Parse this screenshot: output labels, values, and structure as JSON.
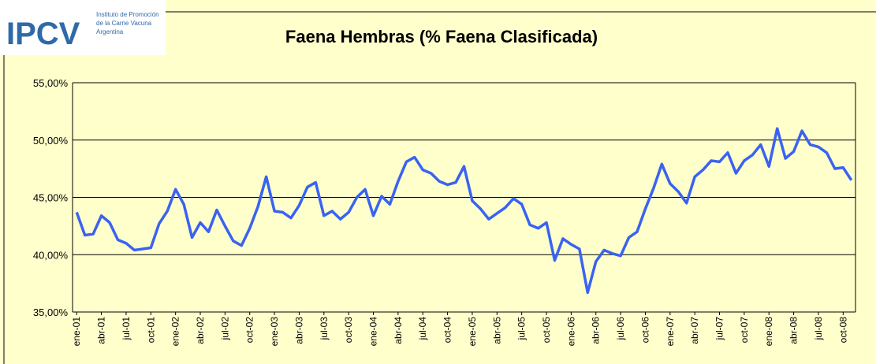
{
  "logo": {
    "mark": "IPCV",
    "line1": "Instituto de Promoción",
    "line2": "de la Carne Vacuna",
    "line3": "Argentina"
  },
  "chart_data": {
    "type": "line",
    "title": "Faena Hembras (% Faena Clasificada)",
    "categories": [
      "ene-01",
      null,
      null,
      "abr-01",
      null,
      null,
      "jul-01",
      null,
      null,
      "oct-01",
      null,
      null,
      "ene-02",
      null,
      null,
      "abr-02",
      null,
      null,
      "jul-02",
      null,
      null,
      "oct-02",
      null,
      null,
      "ene-03",
      null,
      null,
      "abr-03",
      null,
      null,
      "jul-03",
      null,
      null,
      "oct-03",
      null,
      null,
      "ene-04",
      null,
      null,
      "abr-04",
      null,
      null,
      "jul-04",
      null,
      null,
      "oct-04",
      null,
      null,
      "ene-05",
      null,
      null,
      "abr-05",
      null,
      null,
      "jul-05",
      null,
      null,
      "oct-05",
      null,
      null,
      "ene-06",
      null,
      null,
      "abr-06",
      null,
      null,
      "jul-06",
      null,
      null,
      "oct-06",
      null,
      null,
      "ene-07",
      null,
      null,
      "abr-07",
      null,
      null,
      "jul-07",
      null,
      null,
      "oct-07",
      null,
      null,
      "ene-08",
      null,
      null,
      "abr-08",
      null,
      null,
      "jul-08",
      null,
      null,
      "oct-08",
      null
    ],
    "series": [
      {
        "color": "#3a62f2",
        "values": [
          43.7,
          41.7,
          41.8,
          43.4,
          42.8,
          41.3,
          41.0,
          40.4,
          40.5,
          40.6,
          42.7,
          43.8,
          45.7,
          44.4,
          41.5,
          42.8,
          42.0,
          43.9,
          42.5,
          41.2,
          40.8,
          42.3,
          44.2,
          46.8,
          43.8,
          43.7,
          43.2,
          44.3,
          45.9,
          46.3,
          43.4,
          43.8,
          43.1,
          43.7,
          45.0,
          45.7,
          43.4,
          45.1,
          44.4,
          46.4,
          48.1,
          48.5,
          47.4,
          47.1,
          46.4,
          46.1,
          46.3,
          47.7,
          44.7,
          44.0,
          43.1,
          43.6,
          44.1,
          44.9,
          44.4,
          42.6,
          42.3,
          42.8,
          39.5,
          41.4,
          40.9,
          40.5,
          36.7,
          39.4,
          40.4,
          40.1,
          39.9,
          41.5,
          42.0,
          44.0,
          45.8,
          47.9,
          46.2,
          45.5,
          44.5,
          46.8,
          47.4,
          48.2,
          48.1,
          48.9,
          47.1,
          48.2,
          48.7,
          49.6,
          47.7,
          51.0,
          48.4,
          49.0,
          50.8,
          49.6,
          49.4,
          48.9,
          47.5,
          47.6,
          46.5
        ]
      }
    ],
    "ylim": [
      35,
      55
    ],
    "yticks": [
      {
        "value": 35,
        "label": "35,00%"
      },
      {
        "value": 40,
        "label": "40,00%"
      },
      {
        "value": 45,
        "label": "45,00%"
      },
      {
        "value": 50,
        "label": "50,00%"
      },
      {
        "value": 55,
        "label": "55,00%"
      }
    ],
    "grid": true
  }
}
